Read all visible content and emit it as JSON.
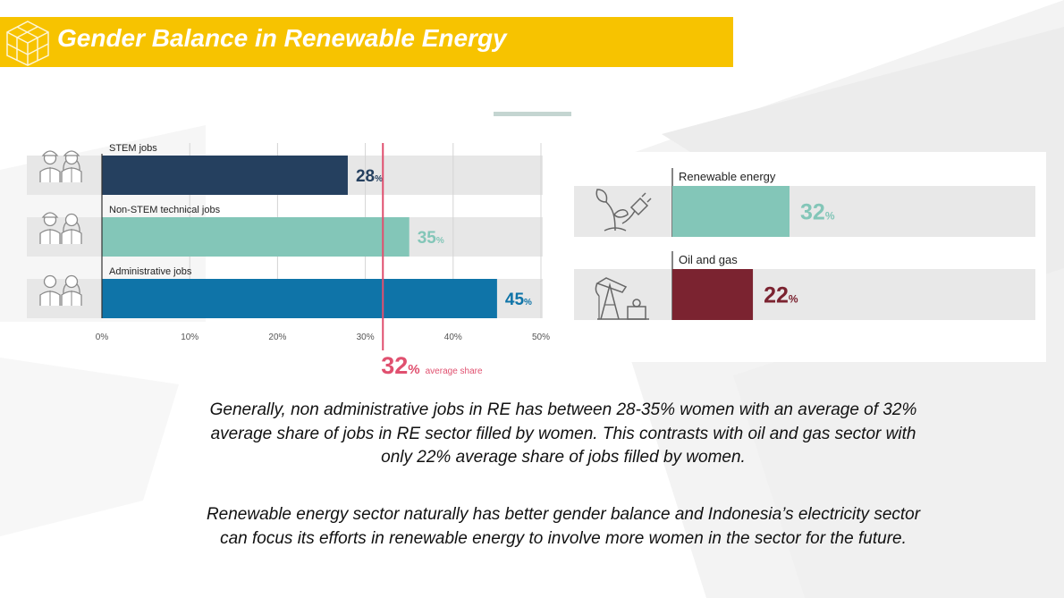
{
  "slide": {
    "title": "Gender Balance in Renewable Energy",
    "paragraphs": [
      "Generally, non administrative jobs in RE has between 28-35% women with an average of 32% average share of jobs in RE sector filled by women.  This contrasts with oil and gas sector with only 22% average share of jobs filled by women.",
      "Renewable energy sector naturally has better gender balance and Indonesia’s electricity sector can focus its efforts in renewable energy to involve more women in the sector for the future."
    ]
  },
  "chart_data": [
    {
      "type": "bar",
      "orientation": "horizontal",
      "categories": [
        "STEM jobs",
        "Non-STEM technical jobs",
        "Administrative jobs"
      ],
      "values": [
        28,
        35,
        45
      ],
      "value_labels": [
        "28",
        "35",
        "45"
      ],
      "unit": "%",
      "colors": [
        "#25405f",
        "#83c6b8",
        "#0f74a8"
      ],
      "icons": [
        "worker-pair-icon",
        "worker-pair-icon",
        "office-worker-pair-icon"
      ],
      "xlim": [
        0,
        50
      ],
      "x_ticks": [
        "0%",
        "10%",
        "20%",
        "30%",
        "40%",
        "50%"
      ],
      "reference_line": {
        "value": 32,
        "label_value": "32",
        "label_unit": "%",
        "label_text": "average share",
        "color": "#e0506f"
      },
      "grid": true
    },
    {
      "type": "bar",
      "orientation": "horizontal",
      "categories": [
        "Renewable energy",
        "Oil and gas"
      ],
      "values": [
        32,
        22
      ],
      "value_labels": [
        "32",
        "22"
      ],
      "unit": "%",
      "colors": [
        "#83c6b8",
        "#7b2330"
      ],
      "icons": [
        "plant-plug-icon",
        "oil-pump-icon"
      ],
      "grid": false
    }
  ],
  "colors": {
    "title_bar": "#f7c300",
    "title_text": "#ffffff"
  }
}
